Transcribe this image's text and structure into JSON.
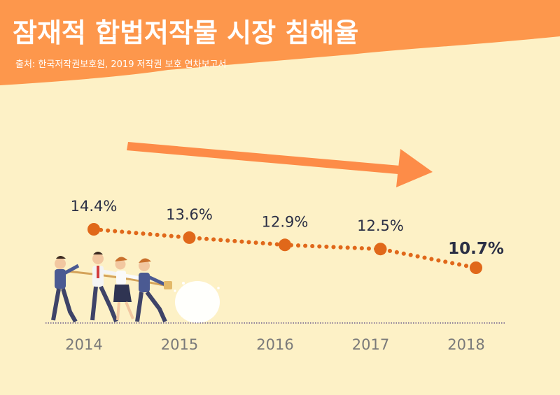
{
  "header": {
    "title": "잠재적 합법저작물 시장 침해율",
    "source": "출처: 한국저작권보호원, 2019 저작권 보호 연차보고서"
  },
  "colors": {
    "background": "#fdf1c6",
    "header": "#fd974c",
    "trend_arrow": "#fd8c48",
    "line": "#e0681a",
    "marker": "#e0681a"
  },
  "chart_data": {
    "type": "line",
    "title": "잠재적 합법저작물 시장 침해율",
    "categories": [
      "2014",
      "2015",
      "2016",
      "2017",
      "2018"
    ],
    "values": [
      14.4,
      13.6,
      12.9,
      12.5,
      10.7
    ],
    "value_labels": [
      "14.4%",
      "13.6%",
      "12.9%",
      "12.5%",
      "10.7%"
    ],
    "unit": "%",
    "line_style": "dotted",
    "xlabel": "",
    "ylabel": "",
    "grid": false,
    "legend": "none"
  },
  "illustration": {
    "description_icon": "tug-of-war-people-icon"
  }
}
